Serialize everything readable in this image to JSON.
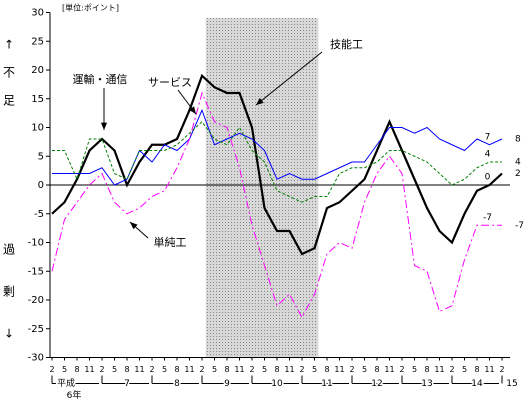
{
  "chart_data": {
    "type": "line",
    "unit_note": "[単位:ポイント]",
    "y_label_top": [
      "↑",
      "不",
      "足"
    ],
    "y_label_bottom": [
      "過",
      "剰",
      "↓"
    ],
    "categories": [
      "2",
      "5",
      "8",
      "11",
      "2",
      "5",
      "8",
      "11",
      "2",
      "5",
      "8",
      "11",
      "2",
      "5",
      "8",
      "11",
      "2",
      "5",
      "8",
      "11",
      "2",
      "5",
      "8",
      "11",
      "2",
      "5",
      "8",
      "11",
      "2",
      "5",
      "8",
      "11",
      "2",
      "5",
      "8",
      "11",
      "2"
    ],
    "year_labels": [
      "平成",
      "7",
      "8",
      "9",
      "10",
      "11",
      "12",
      "13",
      "14",
      "15"
    ],
    "first_year_sub": "6年",
    "ylim": [
      -30,
      30
    ],
    "yticks": [
      30,
      25,
      20,
      15,
      10,
      5,
      0,
      -5,
      -10,
      -15,
      -20,
      -25,
      -30
    ],
    "shade": [
      12.3,
      21.3
    ],
    "labeled_points": [
      35,
      36
    ],
    "series": [
      {
        "name": "技能工",
        "color": "#000000",
        "dash": "none",
        "width": 2.2,
        "values": [
          -5,
          -3,
          1,
          6,
          8,
          6,
          0,
          4,
          7,
          7,
          8,
          13,
          19,
          17,
          16,
          16,
          10,
          -4,
          -8,
          -8,
          -12,
          -11,
          -4,
          -3,
          -1,
          1,
          6,
          11,
          6,
          1,
          -4,
          -8,
          -10,
          -5,
          -1,
          0,
          2
        ]
      },
      {
        "name": "サービス",
        "color": "#0000ff",
        "dash": "none",
        "width": 1,
        "values": [
          2,
          2,
          2,
          2,
          3,
          0,
          1,
          6,
          4,
          7,
          6,
          8,
          13,
          7,
          8,
          9,
          8,
          6,
          1,
          2,
          1,
          1,
          2,
          3,
          4,
          4,
          7,
          10,
          10,
          9,
          10,
          8,
          7,
          6,
          8,
          7,
          8
        ]
      },
      {
        "name": "運輸・通信",
        "color": "#008000",
        "dash": "3 2",
        "width": 1,
        "values": [
          6,
          6,
          1,
          8,
          8,
          2,
          1,
          6,
          6,
          6,
          7,
          9,
          11,
          8,
          7,
          10,
          6,
          4,
          -1,
          -2,
          -3,
          -2,
          -2,
          2,
          3,
          3,
          4,
          6,
          6,
          5,
          4,
          2,
          0,
          1,
          3,
          4,
          4
        ]
      },
      {
        "name": "単純工",
        "color": "#ff00ff",
        "dash": "8 3 2 3",
        "width": 1,
        "values": [
          -15,
          -6,
          -3,
          0,
          2,
          -3,
          -5,
          -4,
          -2,
          -1,
          3,
          8,
          16,
          11,
          10,
          3,
          -7,
          -14,
          -21,
          -19,
          -23,
          -19,
          -12,
          -10,
          -11,
          -3,
          2,
          5,
          2,
          -14,
          -15,
          -22,
          -21,
          -13,
          -7,
          -7,
          -7
        ]
      }
    ]
  }
}
